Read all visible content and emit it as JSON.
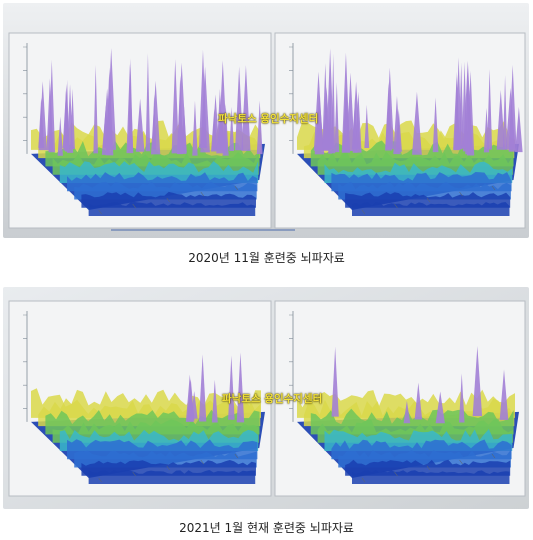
{
  "photos": [
    {
      "id": "top",
      "watermark": "파낙토스 용인수지센터",
      "caption": "2020년 11월 훈련중 뇌파자료",
      "peak_intensity": "high"
    },
    {
      "id": "bottom",
      "watermark": "파낙토스 용인수지센터",
      "caption": "2021년 1월 현재 훈련중 뇌파자료",
      "peak_intensity": "low"
    }
  ],
  "colors": {
    "screen_bg": "#d9dde1",
    "blue_deep": "#1a3fb0",
    "blue_mid": "#2e6fd1",
    "cyan": "#39b7c9",
    "green": "#6fc65a",
    "yellow": "#d9d84a",
    "purple": "#a27fd6",
    "watermark": "#f4e33a"
  }
}
